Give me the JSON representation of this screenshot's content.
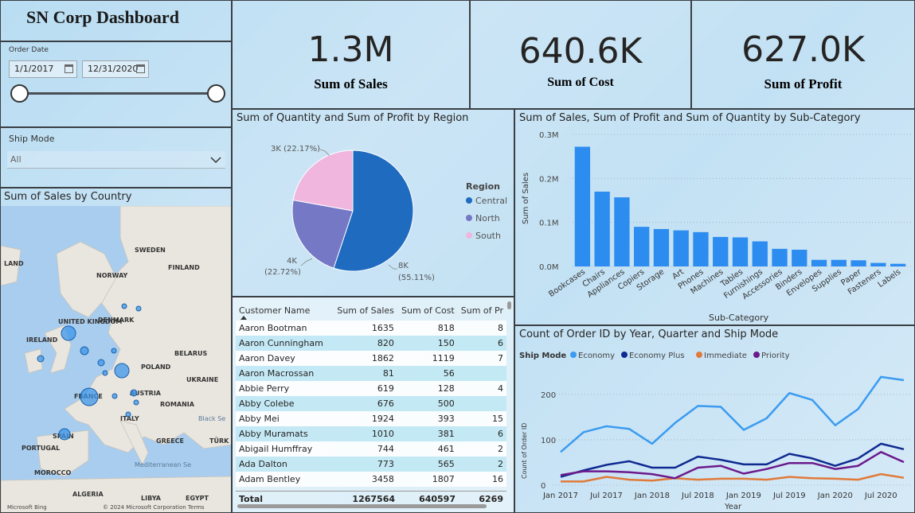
{
  "dashboard_title": "SN Corp Dashboard",
  "filters": {
    "order_date_label": "Order Date",
    "start_date": "1/1/2017",
    "end_date": "12/31/2020",
    "ship_mode_label": "Ship Mode",
    "ship_mode_value": "All"
  },
  "kpis": [
    {
      "value": "1.3M",
      "label": "Sum of Sales"
    },
    {
      "value": "640.6K",
      "label": "Sum of Cost"
    },
    {
      "value": "627.0K",
      "label": "Sum of Profit"
    }
  ],
  "map": {
    "title": "Sum of Sales by Country",
    "labels": [
      "SWEDEN",
      "FINLAND",
      "NORWAY",
      "UNITED KINGDOM",
      "DENMARK",
      "IRELAND",
      "BELARUS",
      "POLAND",
      "UKRAINE",
      "FRANCE",
      "AUSTRIA",
      "ROMANIA",
      "ITALY",
      "SPAIN",
      "PORTUGAL",
      "GREECE",
      "TÜRK",
      "MOROCCO",
      "ALGERIA",
      "LIBYA",
      "EGYPT",
      "LAND",
      "Black Se",
      "Mediterranean Se"
    ],
    "attribution_left": "Microsoft Bing",
    "attribution_right": "© 2024 Microsoft Corporation  Terms"
  },
  "pie": {
    "title": "Sum of Quantity and Sum of Profit by Region",
    "legend_title": "Region",
    "slice_labels": [
      "8K",
      "(55.11%)",
      "4K",
      "(22.72%)",
      "3K (22.17%)"
    ]
  },
  "table": {
    "headers": [
      "Customer Name",
      "Sum of Sales",
      "Sum of Cost",
      "Sum of Pr"
    ],
    "rows": [
      [
        "Aaron Bootman",
        "1635",
        "818",
        "8"
      ],
      [
        "Aaron Cunningham",
        "820",
        "150",
        "6"
      ],
      [
        "Aaron Davey",
        "1862",
        "1119",
        "7"
      ],
      [
        "Aaron Macrossan",
        "81",
        "56",
        ""
      ],
      [
        "Abbie Perry",
        "619",
        "128",
        "4"
      ],
      [
        "Abby Colebe",
        "676",
        "500",
        ""
      ],
      [
        "Abby Mei",
        "1924",
        "393",
        "15"
      ],
      [
        "Abby Muramats",
        "1010",
        "381",
        "6"
      ],
      [
        "Abigail Humffray",
        "744",
        "461",
        "2"
      ],
      [
        "Ada Dalton",
        "773",
        "565",
        "2"
      ],
      [
        "Adam Bentley",
        "3458",
        "1807",
        "16"
      ]
    ],
    "total": [
      "Total",
      "1267564",
      "640597",
      "6269"
    ]
  },
  "bar_axis": {
    "title": "Sum of Sales, Sum of Profit and Sum of Quantity by Sub-Category",
    "ytick_labels": [
      "0.0M",
      "0.1M",
      "0.2M",
      "0.3M"
    ]
  },
  "line_axis": {
    "title": "Count of Order ID by Year, Quarter and Ship Mode",
    "legend_title": "Ship Mode",
    "xtick_labels": [
      "Jan 2017",
      "Jul 2017",
      "Jan 2018",
      "Jul 2018",
      "Jan 2019",
      "Jul 2019",
      "Jan 2020",
      "Jul 2020"
    ]
  },
  "chart_data": [
    {
      "type": "pie",
      "title": "Sum of Quantity and Sum of Profit by Region",
      "legend": {
        "title": "Region",
        "placement": "right"
      },
      "categories": [
        "Central",
        "North",
        "South"
      ],
      "values": [
        8000,
        4000,
        3000
      ],
      "percentages": [
        55.11,
        22.72,
        22.17
      ],
      "colors": [
        "#1f6bbf",
        "#7578c4",
        "#f0b6de"
      ]
    },
    {
      "type": "bar",
      "title": "Sum of Sales, Sum of Profit and Sum of Quantity by Sub-Category",
      "xlabel": "Sub-Category",
      "ylabel": "Sum of Sales",
      "ylim": [
        0,
        0.3
      ],
      "unit": "M",
      "color": "#2d8cf0",
      "categories": [
        "Bookcases",
        "Chairs",
        "Appliances",
        "Copiers",
        "Storage",
        "Art",
        "Phones",
        "Machines",
        "Tables",
        "Furnishings",
        "Accessories",
        "Binders",
        "Envelopes",
        "Supplies",
        "Paper",
        "Fasteners",
        "Labels"
      ],
      "values": [
        0.272,
        0.17,
        0.157,
        0.09,
        0.085,
        0.082,
        0.078,
        0.067,
        0.066,
        0.057,
        0.04,
        0.038,
        0.015,
        0.015,
        0.014,
        0.008,
        0.006
      ]
    },
    {
      "type": "line",
      "title": "Count of Order ID by Year, Quarter and Ship Mode",
      "xlabel": "Year",
      "ylabel": "Count of Order ID",
      "ylim": [
        0,
        250
      ],
      "yticks": [
        0,
        100,
        200
      ],
      "x": [
        "2017 Q1",
        "2017 Q2",
        "2017 Q3",
        "2017 Q4",
        "2018 Q1",
        "2018 Q2",
        "2018 Q3",
        "2018 Q4",
        "2019 Q1",
        "2019 Q2",
        "2019 Q3",
        "2019 Q4",
        "2020 Q1",
        "2020 Q2",
        "2020 Q3",
        "2020 Q4"
      ],
      "legend": {
        "title": "Ship Mode",
        "placement": "top-left"
      },
      "grid": true,
      "series": [
        {
          "name": "Economy",
          "color": "#3a9bf0",
          "values": [
            72,
            115,
            128,
            122,
            90,
            135,
            172,
            170,
            120,
            145,
            200,
            185,
            130,
            165,
            235,
            228
          ]
        },
        {
          "name": "Economy Plus",
          "color": "#0f2b91",
          "values": [
            18,
            32,
            44,
            52,
            38,
            38,
            62,
            55,
            45,
            45,
            68,
            58,
            42,
            58,
            90,
            78
          ]
        },
        {
          "name": "Immediate",
          "color": "#e07a3a",
          "values": [
            8,
            8,
            18,
            12,
            10,
            15,
            12,
            14,
            14,
            12,
            18,
            15,
            14,
            12,
            24,
            16
          ]
        },
        {
          "name": "Priority",
          "color": "#6c1a8c",
          "values": [
            22,
            30,
            30,
            28,
            24,
            15,
            38,
            42,
            25,
            35,
            48,
            48,
            35,
            42,
            72,
            50
          ]
        }
      ]
    }
  ]
}
